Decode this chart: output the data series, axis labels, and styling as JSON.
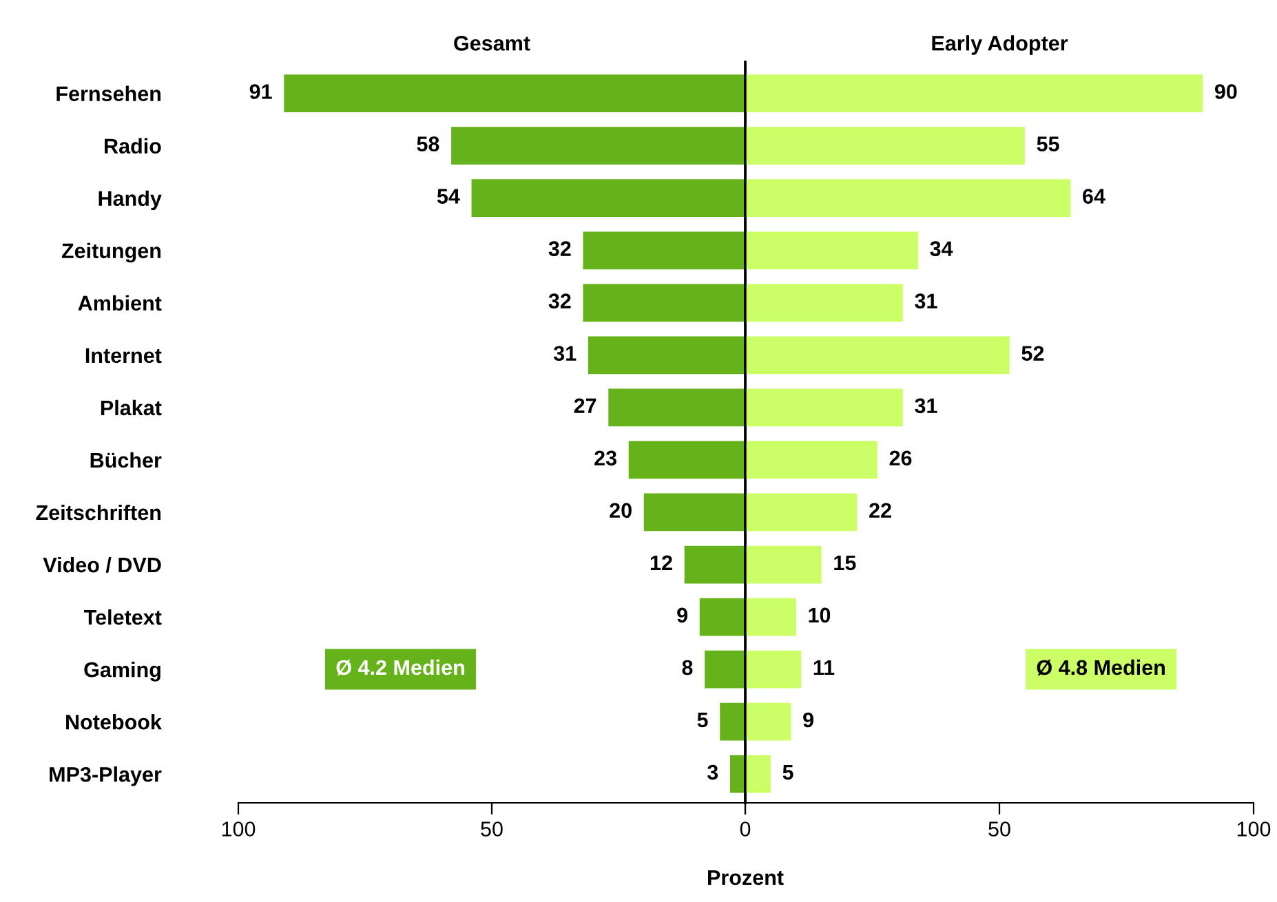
{
  "chart_data": [
    {
      "type": "bar",
      "orientation": "horizontal",
      "title": "Gesamt",
      "categories": [
        "Fernsehen",
        "Radio",
        "Handy",
        "Zeitungen",
        "Ambient",
        "Internet",
        "Plakat",
        "Bücher",
        "Zeitschriften",
        "Video / DVD",
        "Teletext",
        "Gaming",
        "Notebook",
        "MP3-Player"
      ],
      "series": [
        {
          "color": "#66b21a",
          "values": [
            91,
            58,
            54,
            32,
            32,
            31,
            27,
            23,
            20,
            12,
            9,
            8,
            5,
            3
          ]
        }
      ],
      "xlim": [
        100,
        0
      ],
      "xticks": [
        100,
        50,
        {
          "value": 0,
          "label": null
        }
      ],
      "data_labels": true,
      "annotations": [
        "Ø 4.2 Medien"
      ],
      "grid": false,
      "legend": false
    },
    {
      "type": "bar",
      "orientation": "horizontal",
      "title": "Early Adopter",
      "xlabel": "Prozent",
      "series": [
        {
          "color": "#ccff66",
          "values": [
            90,
            55,
            64,
            34,
            31,
            52,
            31,
            26,
            22,
            15,
            10,
            11,
            9,
            5
          ]
        }
      ],
      "xlim": [
        0,
        100
      ],
      "xticks": [
        0,
        50,
        100
      ],
      "data_labels": true,
      "tick_labels": "x",
      "annotations": [
        "Ø 4.8 Medien"
      ],
      "grid": false,
      "legend": false
    }
  ]
}
